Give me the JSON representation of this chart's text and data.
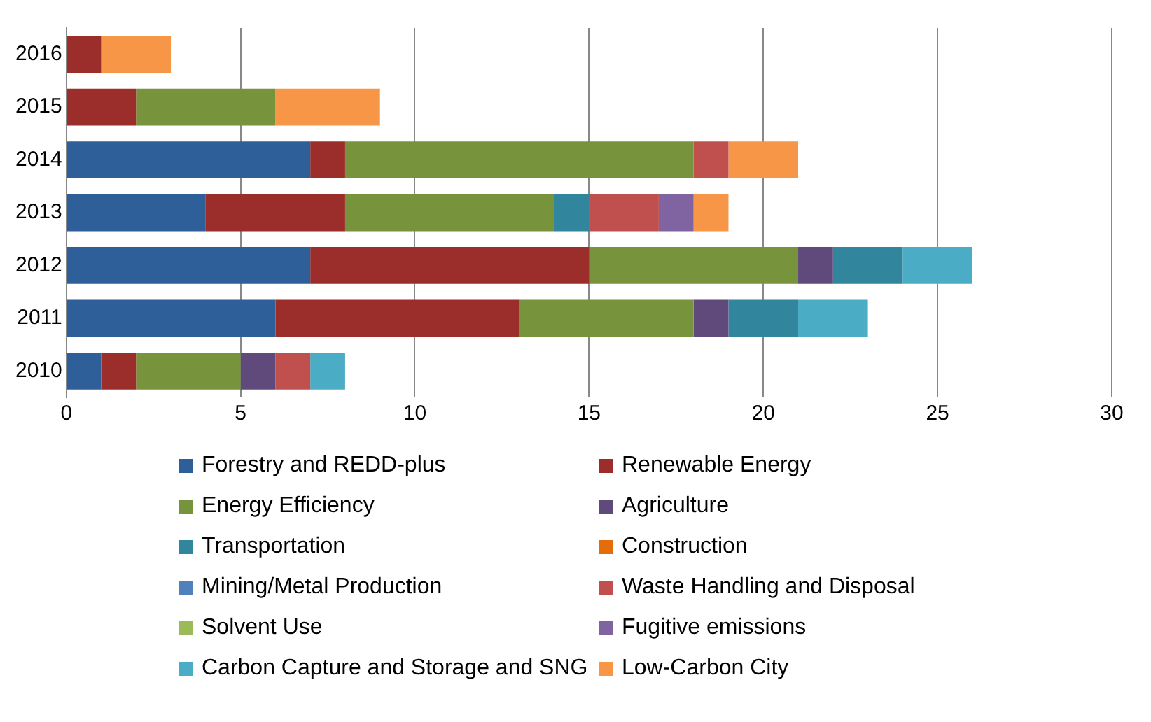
{
  "chart_data": {
    "type": "bar",
    "orientation": "horizontal",
    "stacked": true,
    "categories": [
      "2016",
      "2015",
      "2014",
      "2013",
      "2012",
      "2011",
      "2010"
    ],
    "series": [
      {
        "name": "Forestry and REDD-plus",
        "color": "#2e5f99",
        "values": [
          0,
          0,
          7,
          4,
          7,
          6,
          1
        ]
      },
      {
        "name": "Renewable Energy",
        "color": "#9b2d2a",
        "values": [
          1,
          2,
          1,
          4,
          8,
          7,
          1
        ]
      },
      {
        "name": "Energy Efficiency",
        "color": "#77933c",
        "values": [
          0,
          4,
          10,
          6,
          6,
          5,
          3
        ]
      },
      {
        "name": "Agriculture",
        "color": "#604a7b",
        "values": [
          0,
          0,
          0,
          0,
          1,
          1,
          1
        ]
      },
      {
        "name": "Transportation",
        "color": "#31859c",
        "values": [
          0,
          0,
          0,
          1,
          2,
          2,
          0
        ]
      },
      {
        "name": "Construction",
        "color": "#e46c0a",
        "values": [
          0,
          0,
          0,
          0,
          0,
          0,
          0
        ]
      },
      {
        "name": "Mining/Metal Production",
        "color": "#4f81bd",
        "values": [
          0,
          0,
          0,
          0,
          0,
          0,
          0
        ]
      },
      {
        "name": "Waste Handling and Disposal",
        "color": "#c0504d",
        "values": [
          0,
          0,
          1,
          2,
          0,
          0,
          1
        ]
      },
      {
        "name": "Solvent Use",
        "color": "#9bbb59",
        "values": [
          0,
          0,
          0,
          0,
          0,
          0,
          0
        ]
      },
      {
        "name": "Fugitive emissions",
        "color": "#8064a2",
        "values": [
          0,
          0,
          0,
          1,
          0,
          0,
          0
        ]
      },
      {
        "name": "Carbon Capture and Storage and SNG",
        "color": "#4bacc6",
        "values": [
          0,
          0,
          0,
          0,
          2,
          2,
          1
        ]
      },
      {
        "name": "Low-Carbon City",
        "color": "#f79646",
        "values": [
          2,
          3,
          2,
          1,
          0,
          0,
          0
        ]
      }
    ],
    "xlim": [
      0,
      30
    ],
    "xticks": [
      0,
      5,
      10,
      15,
      20,
      25,
      30
    ],
    "grid": "x",
    "legend": "bottom"
  }
}
